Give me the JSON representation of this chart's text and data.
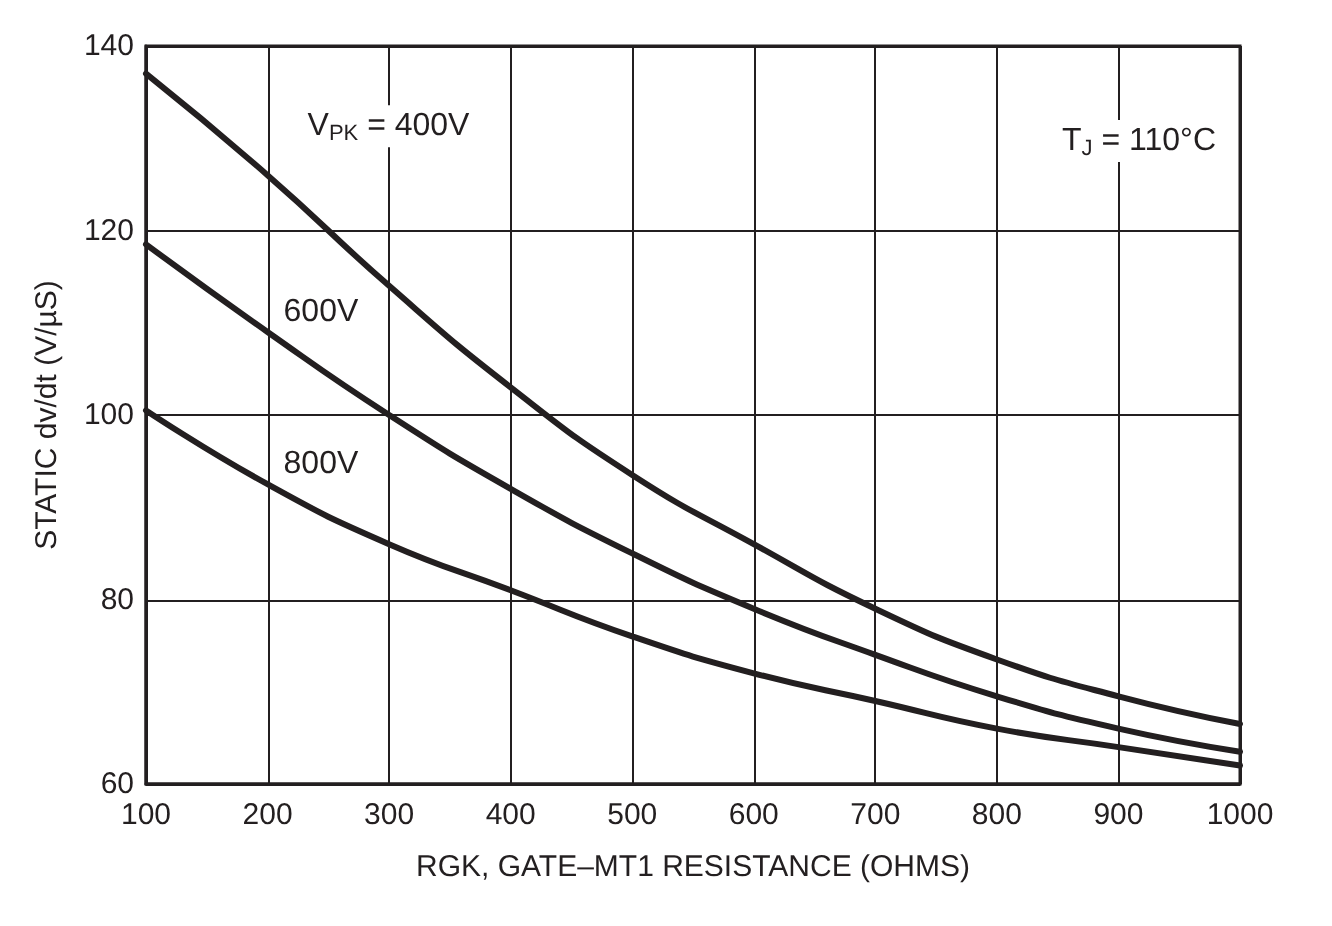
{
  "chart_data": {
    "type": "line",
    "xlabel": "RGK, GATE–MT1 RESISTANCE (OHMS)",
    "ylabel": "STATIC dv/dt (V/µS)",
    "x": [
      100,
      200,
      300,
      400,
      500,
      600,
      700,
      800,
      900,
      1000
    ],
    "series": [
      {
        "name": "V$_{PK}$ = 400V",
        "color": "#231f20",
        "values": [
          137,
          126,
          114,
          103,
          93.5,
          86,
          79,
          73.5,
          69.5,
          66.5
        ]
      },
      {
        "name": "600V",
        "color": "#231f20",
        "values": [
          118.5,
          109,
          100,
          92,
          85,
          79,
          74,
          69.5,
          66,
          63.5
        ]
      },
      {
        "name": "800V",
        "color": "#231f20",
        "values": [
          100.5,
          92.5,
          86,
          81,
          76,
          72,
          69,
          66,
          64,
          62
        ]
      }
    ],
    "xlim": [
      100,
      1000
    ],
    "xticks": [
      100,
      200,
      300,
      400,
      500,
      600,
      700,
      800,
      900,
      1000
    ],
    "ylim": [
      60,
      140
    ],
    "yticks": [
      60,
      80,
      100,
      120,
      140
    ],
    "grid": true,
    "marker": "none",
    "line_style": "solid",
    "annotations": [
      "T$_{J}$ = 110°C"
    ]
  }
}
